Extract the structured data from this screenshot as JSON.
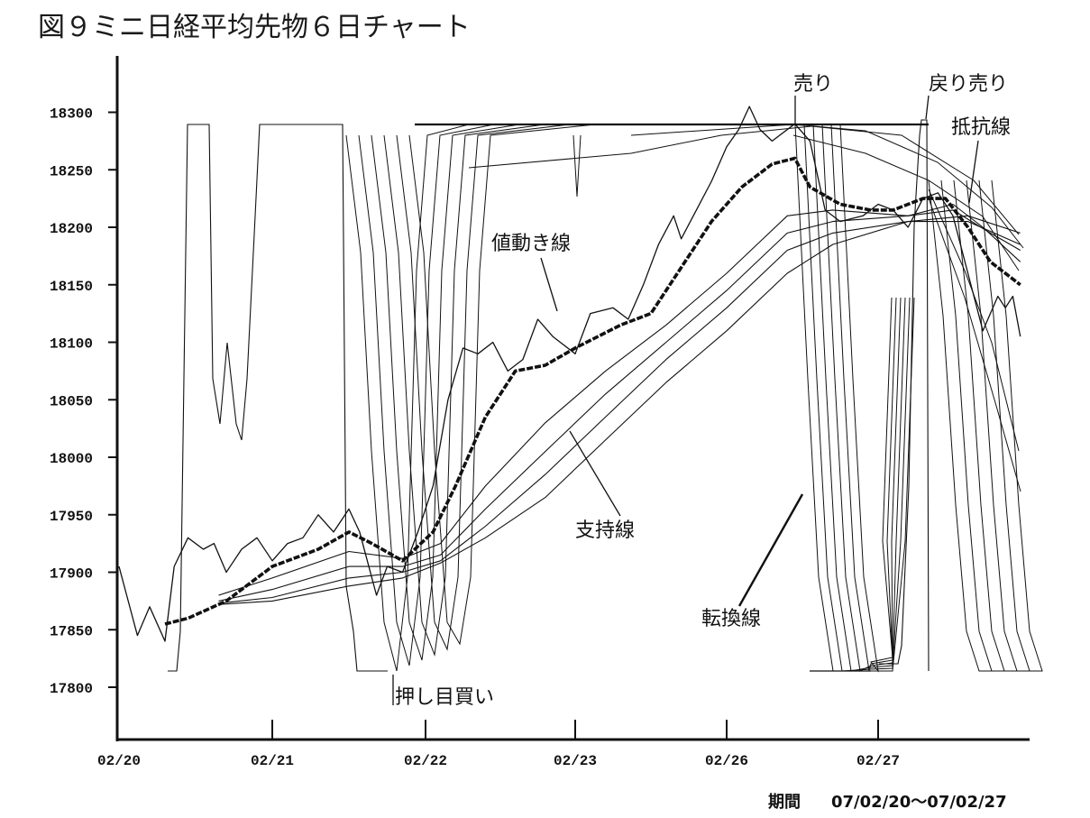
{
  "title": "図９ミニ日経平均先物６日チャート",
  "period": {
    "label": "期間",
    "range": "07/02/20～07/02/27"
  },
  "chart_data": {
    "type": "line",
    "title": "図９ミニ日経平均先物６日チャート",
    "xlabel": "",
    "ylabel": "",
    "ylim": [
      17775,
      18325
    ],
    "y_ticks": [
      17800,
      17850,
      17900,
      17950,
      18000,
      18050,
      18100,
      18150,
      18200,
      18250,
      18300
    ],
    "x_tick_labels": [
      "02/20",
      "02/21",
      "02/22",
      "02/23",
      "02/26",
      "02/27"
    ],
    "x_range": [
      0,
      6
    ],
    "grid": false,
    "legend": "none",
    "series": [
      {
        "role": "price",
        "points": [
          [
            0,
            17905
          ],
          [
            0.05,
            17880
          ],
          [
            0.12,
            17845
          ],
          [
            0.2,
            17870
          ],
          [
            0.3,
            17840
          ],
          [
            0.36,
            17905
          ],
          [
            0.45,
            17930
          ],
          [
            0.55,
            17920
          ],
          [
            0.62,
            17925
          ],
          [
            0.7,
            17900
          ],
          [
            0.8,
            17920
          ],
          [
            0.9,
            17930
          ],
          [
            1.0,
            17910
          ],
          [
            1.1,
            17925
          ],
          [
            1.2,
            17930
          ],
          [
            1.3,
            17950
          ],
          [
            1.4,
            17935
          ],
          [
            1.5,
            17955
          ],
          [
            1.57,
            17935
          ],
          [
            1.62,
            17910
          ],
          [
            1.68,
            17880
          ],
          [
            1.75,
            17905
          ],
          [
            1.85,
            17900
          ],
          [
            1.95,
            17935
          ],
          [
            2.05,
            17975
          ],
          [
            2.15,
            18050
          ],
          [
            2.25,
            18095
          ],
          [
            2.35,
            18090
          ],
          [
            2.45,
            18100
          ],
          [
            2.55,
            18075
          ],
          [
            2.65,
            18085
          ],
          [
            2.75,
            18120
          ],
          [
            2.85,
            18105
          ],
          [
            3.0,
            18090
          ],
          [
            3.1,
            18125
          ],
          [
            3.25,
            18130
          ],
          [
            3.35,
            18120
          ],
          [
            3.45,
            18150
          ],
          [
            3.55,
            18185
          ],
          [
            3.65,
            18210
          ],
          [
            3.7,
            18190
          ],
          [
            3.8,
            18215
          ],
          [
            3.9,
            18240
          ],
          [
            4.0,
            18270
          ],
          [
            4.08,
            18285
          ],
          [
            4.15,
            18305
          ],
          [
            4.22,
            18285
          ],
          [
            4.3,
            18275
          ],
          [
            4.45,
            18290
          ],
          [
            4.55,
            18275
          ],
          [
            4.65,
            18215
          ],
          [
            4.75,
            18205
          ],
          [
            4.9,
            18210
          ],
          [
            5.0,
            18220
          ],
          [
            5.1,
            18215
          ],
          [
            5.2,
            18200
          ],
          [
            5.3,
            18225
          ],
          [
            5.4,
            18230
          ],
          [
            5.5,
            18210
          ],
          [
            5.6,
            18160
          ],
          [
            5.7,
            18110
          ],
          [
            5.8,
            18140
          ],
          [
            5.85,
            18130
          ],
          [
            5.9,
            18140
          ],
          [
            5.95,
            18105
          ]
        ]
      },
      {
        "role": "moving-average-bold",
        "points": [
          [
            0.3,
            17855
          ],
          [
            0.45,
            17860
          ],
          [
            0.7,
            17875
          ],
          [
            1.0,
            17905
          ],
          [
            1.3,
            17920
          ],
          [
            1.5,
            17935
          ],
          [
            1.65,
            17925
          ],
          [
            1.85,
            17910
          ],
          [
            2.05,
            17935
          ],
          [
            2.2,
            17975
          ],
          [
            2.4,
            18035
          ],
          [
            2.6,
            18075
          ],
          [
            2.8,
            18080
          ],
          [
            3.0,
            18095
          ],
          [
            3.3,
            18115
          ],
          [
            3.5,
            18125
          ],
          [
            3.7,
            18165
          ],
          [
            3.9,
            18205
          ],
          [
            4.1,
            18235
          ],
          [
            4.3,
            18255
          ],
          [
            4.45,
            18260
          ],
          [
            4.55,
            18235
          ],
          [
            4.75,
            18220
          ],
          [
            4.95,
            18215
          ],
          [
            5.1,
            18215
          ],
          [
            5.3,
            18225
          ],
          [
            5.45,
            18225
          ],
          [
            5.6,
            18200
          ],
          [
            5.75,
            18170
          ],
          [
            5.95,
            18150
          ]
        ]
      },
      {
        "role": "support-line-1",
        "points": [
          [
            0.65,
            17880
          ],
          [
            1.0,
            17895
          ],
          [
            1.5,
            17918
          ],
          [
            1.85,
            17912
          ],
          [
            2.1,
            17925
          ],
          [
            2.4,
            17975
          ],
          [
            2.8,
            18030
          ],
          [
            3.2,
            18075
          ],
          [
            3.6,
            18115
          ],
          [
            4.0,
            18160
          ],
          [
            4.4,
            18210
          ],
          [
            4.7,
            18215
          ],
          [
            5.2,
            18210
          ],
          [
            5.5,
            18220
          ],
          [
            5.7,
            18200
          ],
          [
            5.95,
            18170
          ]
        ]
      },
      {
        "role": "support-line-2",
        "points": [
          [
            0.65,
            17875
          ],
          [
            1.0,
            17885
          ],
          [
            1.5,
            17905
          ],
          [
            1.85,
            17905
          ],
          [
            2.1,
            17915
          ],
          [
            2.4,
            17955
          ],
          [
            2.8,
            18005
          ],
          [
            3.2,
            18055
          ],
          [
            3.6,
            18100
          ],
          [
            4.0,
            18145
          ],
          [
            4.4,
            18195
          ],
          [
            4.7,
            18205
          ],
          [
            5.2,
            18210
          ],
          [
            5.5,
            18215
          ],
          [
            5.75,
            18195
          ],
          [
            5.95,
            18180
          ]
        ]
      },
      {
        "role": "support-line-3",
        "points": [
          [
            0.65,
            17873
          ],
          [
            1.0,
            17878
          ],
          [
            1.5,
            17895
          ],
          [
            1.85,
            17900
          ],
          [
            2.1,
            17910
          ],
          [
            2.4,
            17940
          ],
          [
            2.8,
            17985
          ],
          [
            3.2,
            18035
          ],
          [
            3.6,
            18085
          ],
          [
            4.0,
            18130
          ],
          [
            4.4,
            18180
          ],
          [
            4.7,
            18195
          ],
          [
            5.2,
            18205
          ],
          [
            5.6,
            18205
          ],
          [
            5.95,
            18185
          ]
        ]
      },
      {
        "role": "support-line-4",
        "points": [
          [
            0.65,
            17872
          ],
          [
            1.0,
            17875
          ],
          [
            1.5,
            17888
          ],
          [
            1.85,
            17895
          ],
          [
            2.1,
            17908
          ],
          [
            2.4,
            17930
          ],
          [
            2.8,
            17965
          ],
          [
            3.2,
            18015
          ],
          [
            3.6,
            18065
          ],
          [
            4.0,
            18110
          ],
          [
            4.4,
            18160
          ],
          [
            4.7,
            18185
          ],
          [
            5.2,
            18205
          ],
          [
            5.6,
            18210
          ],
          [
            5.95,
            18195
          ]
        ]
      }
    ]
  },
  "annotations": [
    {
      "text": "売り"
    },
    {
      "text": "戻り売り"
    },
    {
      "text": "抵抗線"
    },
    {
      "text": "値動き線"
    },
    {
      "text": "支持線"
    },
    {
      "text": "転換線"
    },
    {
      "text": "押し目買い"
    }
  ]
}
